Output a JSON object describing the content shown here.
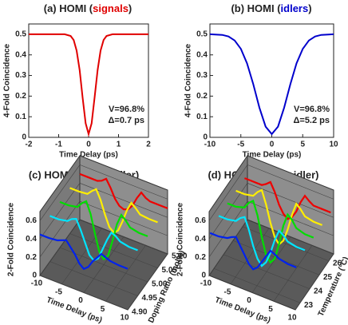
{
  "chart_data": [
    {
      "type": "line",
      "title_parts": [
        "(a) HOMI (",
        "signals",
        ")"
      ],
      "title_color": "#e00000",
      "xlabel": "Time Delay (ps)",
      "ylabel": "4-Fold Coincidence",
      "annotations": [
        "V=96.8%",
        "Δ=0.7 ps"
      ],
      "x": [
        -2,
        -1.5,
        -1,
        -0.8,
        -0.6,
        -0.5,
        -0.4,
        -0.3,
        -0.2,
        -0.1,
        0,
        0.1,
        0.2,
        0.3,
        0.4,
        0.5,
        0.6,
        0.8,
        1,
        1.5,
        2
      ],
      "series": [
        {
          "color": "#e00000",
          "values": [
            0.5,
            0.5,
            0.5,
            0.5,
            0.492,
            0.472,
            0.421,
            0.326,
            0.193,
            0.068,
            0.016,
            0.068,
            0.193,
            0.326,
            0.421,
            0.472,
            0.492,
            0.5,
            0.5,
            0.5,
            0.5
          ]
        }
      ],
      "xlim": [
        -2,
        2
      ],
      "xticks": [
        -2,
        -1,
        0,
        1,
        2
      ],
      "ylim": [
        0,
        0.55
      ],
      "yticks": [
        0,
        0.1,
        0.2,
        0.3,
        0.4,
        0.5
      ]
    },
    {
      "type": "line",
      "title_parts": [
        "(b) HOMI (",
        "idlers",
        ")"
      ],
      "title_color": "#0000cc",
      "xlabel": "Time Delay (ps)",
      "ylabel": "4-Fold Coincidence",
      "annotations": [
        "V=96.8%",
        "Δ=5.2 ps"
      ],
      "x": [
        -10,
        -8,
        -7,
        -6,
        -5,
        -4,
        -3,
        -2,
        -1,
        0,
        1,
        2,
        3,
        4,
        5,
        6,
        7,
        8,
        10
      ],
      "series": [
        {
          "color": "#0000cc",
          "values": [
            0.5,
            0.497,
            0.489,
            0.47,
            0.429,
            0.359,
            0.258,
            0.144,
            0.052,
            0.016,
            0.052,
            0.144,
            0.258,
            0.359,
            0.429,
            0.47,
            0.489,
            0.497,
            0.5
          ]
        }
      ],
      "xlim": [
        -10,
        10
      ],
      "xticks": [
        -10,
        -5,
        0,
        5,
        10
      ],
      "ylim": [
        0,
        0.55
      ],
      "yticks": [
        0,
        0.1,
        0.2,
        0.3,
        0.4,
        0.5
      ]
    },
    {
      "type": "line3d",
      "title": "(c) HOMI (signal+idler)",
      "xlabel": "Time Delay (ps)",
      "ylabel": "2-Fold Coincidence",
      "zlabel": "Doping Ratio (mol%)",
      "x": [
        -10,
        -8,
        -6,
        -5,
        -4,
        -3,
        -2,
        -1,
        0,
        1,
        2,
        3,
        4,
        5,
        6,
        8,
        10
      ],
      "series": [
        {
          "color": "#0022ee",
          "z": 4.9,
          "values": [
            0.45,
            0.45,
            0.46,
            0.48,
            0.5,
            0.44,
            0.38,
            0.3,
            0.26,
            0.3,
            0.38,
            0.44,
            0.5,
            0.48,
            0.46,
            0.45,
            0.45
          ]
        },
        {
          "color": "#00e5ff",
          "z": 4.95,
          "values": [
            0.5,
            0.5,
            0.52,
            0.56,
            0.58,
            0.48,
            0.36,
            0.24,
            0.2,
            0.24,
            0.36,
            0.48,
            0.58,
            0.56,
            0.52,
            0.5,
            0.5
          ]
        },
        {
          "color": "#00dd00",
          "z": 5.0,
          "values": [
            0.5,
            0.5,
            0.52,
            0.58,
            0.62,
            0.5,
            0.3,
            0.12,
            0.06,
            0.12,
            0.3,
            0.5,
            0.62,
            0.58,
            0.52,
            0.5,
            0.5
          ]
        },
        {
          "color": "#ffee00",
          "z": 5.05,
          "values": [
            0.5,
            0.5,
            0.51,
            0.56,
            0.6,
            0.5,
            0.36,
            0.24,
            0.2,
            0.24,
            0.36,
            0.5,
            0.6,
            0.56,
            0.51,
            0.5,
            0.5
          ]
        },
        {
          "color": "#ee0000",
          "z": 5.1,
          "values": [
            0.5,
            0.5,
            0.5,
            0.52,
            0.56,
            0.48,
            0.38,
            0.32,
            0.3,
            0.32,
            0.38,
            0.48,
            0.56,
            0.52,
            0.5,
            0.5,
            0.5
          ]
        }
      ],
      "xlim": [
        -10,
        10
      ],
      "xticks": [
        -10,
        -5,
        0,
        5,
        10
      ],
      "ylim": [
        0,
        0.7
      ],
      "yticks": [
        0,
        0.2,
        0.4,
        0.6
      ],
      "zlim": [
        4.9,
        5.1
      ],
      "zticks": [
        {
          "value": 4.9,
          "label": "4.90"
        },
        {
          "value": 4.95,
          "label": "4.95"
        },
        {
          "value": 5.0,
          "label": "5.00"
        },
        {
          "value": 5.05,
          "label": "5.05"
        },
        {
          "value": 5.1,
          "label": "5.10"
        }
      ]
    },
    {
      "type": "line3d",
      "title": "(d) HOMI (signal+idler)",
      "xlabel": "Time Delay (ps)",
      "ylabel": "2-Fold Coincidence",
      "zlabel": "Temperature (°C)",
      "x": [
        -10,
        -8,
        -6,
        -5,
        -4,
        -3,
        -2,
        -1,
        0,
        1,
        2,
        3,
        4,
        5,
        6,
        8,
        10
      ],
      "series": [
        {
          "color": "#0022ee",
          "z": 22.6,
          "values": [
            0.45,
            0.45,
            0.47,
            0.5,
            0.52,
            0.44,
            0.36,
            0.28,
            0.24,
            0.28,
            0.36,
            0.44,
            0.52,
            0.5,
            0.47,
            0.45,
            0.45
          ]
        },
        {
          "color": "#00e5ff",
          "z": 23.5,
          "values": [
            0.5,
            0.5,
            0.52,
            0.57,
            0.6,
            0.48,
            0.32,
            0.2,
            0.14,
            0.2,
            0.32,
            0.48,
            0.6,
            0.57,
            0.52,
            0.5,
            0.5
          ]
        },
        {
          "color": "#00dd00",
          "z": 24.4,
          "values": [
            0.5,
            0.5,
            0.53,
            0.6,
            0.64,
            0.5,
            0.28,
            0.1,
            0.04,
            0.1,
            0.28,
            0.5,
            0.64,
            0.6,
            0.53,
            0.5,
            0.5
          ]
        },
        {
          "color": "#ffee00",
          "z": 25.3,
          "values": [
            0.5,
            0.5,
            0.52,
            0.58,
            0.62,
            0.48,
            0.3,
            0.16,
            0.1,
            0.16,
            0.3,
            0.48,
            0.62,
            0.58,
            0.52,
            0.5,
            0.5
          ]
        },
        {
          "color": "#ee0000",
          "z": 26.2,
          "values": [
            0.5,
            0.5,
            0.5,
            0.53,
            0.57,
            0.48,
            0.36,
            0.28,
            0.24,
            0.28,
            0.36,
            0.48,
            0.57,
            0.53,
            0.5,
            0.5,
            0.5
          ]
        }
      ],
      "xlim": [
        -10,
        10
      ],
      "xticks": [
        -10,
        -5,
        0,
        5,
        10
      ],
      "ylim": [
        0,
        0.7
      ],
      "yticks": [
        0,
        0.2,
        0.4,
        0.6
      ],
      "zlim": [
        22.5,
        26.5
      ],
      "zticks": [
        23,
        24,
        25,
        26
      ]
    }
  ]
}
